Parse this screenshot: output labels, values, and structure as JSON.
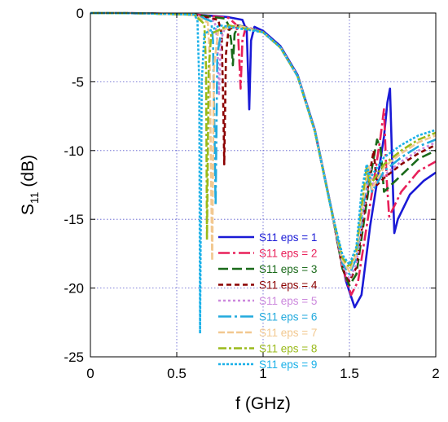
{
  "chart_data": {
    "type": "line",
    "xlabel": "f (GHz)",
    "ylabel_main": "S",
    "ylabel_sub": "11",
    "ylabel_unit": "(dB)",
    "xlim": [
      0,
      2
    ],
    "ylim": [
      -25,
      0
    ],
    "x_ticks": [
      0,
      0.5,
      1,
      1.5,
      2
    ],
    "x_tick_labels": [
      "0",
      "0.5",
      "1",
      "1.5",
      "2"
    ],
    "y_ticks": [
      0,
      -5,
      -10,
      -15,
      -20,
      -25
    ],
    "y_tick_labels": [
      "0",
      "-5",
      "-10",
      "-15",
      "-20",
      "-25"
    ],
    "grid": true,
    "legend_position": "bottom-right",
    "series": [
      {
        "name": "S11 eps = 1",
        "color": "#1a1ad6",
        "dash": "solid",
        "points": [
          [
            0,
            0
          ],
          [
            0.3,
            -0.02
          ],
          [
            0.6,
            -0.1
          ],
          [
            0.8,
            -0.3
          ],
          [
            0.88,
            -0.5
          ],
          [
            0.905,
            -1.3
          ],
          [
            0.92,
            -7.0
          ],
          [
            0.93,
            -2.0
          ],
          [
            0.95,
            -1.0
          ],
          [
            1.0,
            -1.3
          ],
          [
            1.1,
            -2.4
          ],
          [
            1.2,
            -4.5
          ],
          [
            1.3,
            -8.5
          ],
          [
            1.4,
            -14.5
          ],
          [
            1.48,
            -19.5
          ],
          [
            1.53,
            -21.4
          ],
          [
            1.57,
            -20.5
          ],
          [
            1.62,
            -15.5
          ],
          [
            1.67,
            -11.5
          ],
          [
            1.7,
            -9.0
          ],
          [
            1.72,
            -6.5
          ],
          [
            1.735,
            -5.5
          ],
          [
            1.75,
            -12.0
          ],
          [
            1.76,
            -16.0
          ],
          [
            1.78,
            -15.0
          ],
          [
            1.85,
            -13.2
          ],
          [
            1.93,
            -12.2
          ],
          [
            2.0,
            -11.6
          ]
        ]
      },
      {
        "name": "S11 eps = 2",
        "color": "#e8205a",
        "dash": "14,4,3,4",
        "points": [
          [
            0,
            0
          ],
          [
            0.3,
            -0.02
          ],
          [
            0.6,
            -0.1
          ],
          [
            0.8,
            -0.35
          ],
          [
            0.84,
            -0.8
          ],
          [
            0.855,
            -1.5
          ],
          [
            0.87,
            -5.5
          ],
          [
            0.88,
            -2.0
          ],
          [
            0.9,
            -1.0
          ],
          [
            1.0,
            -1.4
          ],
          [
            1.1,
            -2.5
          ],
          [
            1.2,
            -4.6
          ],
          [
            1.3,
            -8.6
          ],
          [
            1.4,
            -14.6
          ],
          [
            1.46,
            -18.5
          ],
          [
            1.51,
            -20.5
          ],
          [
            1.55,
            -19.5
          ],
          [
            1.6,
            -15.5
          ],
          [
            1.65,
            -11.5
          ],
          [
            1.68,
            -9.0
          ],
          [
            1.7,
            -7.0
          ],
          [
            1.715,
            -12.0
          ],
          [
            1.73,
            -14.8
          ],
          [
            1.8,
            -13.0
          ],
          [
            1.9,
            -11.5
          ],
          [
            2.0,
            -10.8
          ]
        ]
      },
      {
        "name": "S11 eps = 3",
        "color": "#1a6a1a",
        "dash": "12,5",
        "points": [
          [
            0,
            0
          ],
          [
            0.3,
            -0.02
          ],
          [
            0.6,
            -0.1
          ],
          [
            0.78,
            -0.4
          ],
          [
            0.8,
            -0.9
          ],
          [
            0.815,
            -2.0
          ],
          [
            0.825,
            -3.8
          ],
          [
            0.835,
            -1.5
          ],
          [
            0.86,
            -0.9
          ],
          [
            1.0,
            -1.4
          ],
          [
            1.1,
            -2.5
          ],
          [
            1.2,
            -4.6
          ],
          [
            1.3,
            -8.6
          ],
          [
            1.4,
            -14.6
          ],
          [
            1.46,
            -18.6
          ],
          [
            1.5,
            -19.8
          ],
          [
            1.54,
            -19.0
          ],
          [
            1.58,
            -15.5
          ],
          [
            1.62,
            -12.0
          ],
          [
            1.66,
            -9.2
          ],
          [
            1.68,
            -9.8
          ],
          [
            1.7,
            -13.0
          ],
          [
            1.8,
            -11.8
          ],
          [
            1.9,
            -10.6
          ],
          [
            2.0,
            -10.0
          ]
        ]
      },
      {
        "name": "S11 eps = 4",
        "color": "#8b0000",
        "dash": "6,4",
        "points": [
          [
            0,
            0
          ],
          [
            0.3,
            -0.02
          ],
          [
            0.6,
            -0.12
          ],
          [
            0.74,
            -0.5
          ],
          [
            0.76,
            -1.5
          ],
          [
            0.77,
            -7.0
          ],
          [
            0.775,
            -11.0
          ],
          [
            0.785,
            -3.0
          ],
          [
            0.8,
            -1.2
          ],
          [
            0.85,
            -0.9
          ],
          [
            1.0,
            -1.4
          ],
          [
            1.1,
            -2.5
          ],
          [
            1.2,
            -4.6
          ],
          [
            1.3,
            -8.6
          ],
          [
            1.4,
            -14.6
          ],
          [
            1.46,
            -18.6
          ],
          [
            1.5,
            -19.5
          ],
          [
            1.54,
            -18.5
          ],
          [
            1.58,
            -15.0
          ],
          [
            1.62,
            -11.5
          ],
          [
            1.64,
            -10.0
          ],
          [
            1.66,
            -12.5
          ],
          [
            1.7,
            -12.0
          ],
          [
            1.8,
            -11.0
          ],
          [
            1.9,
            -10.2
          ],
          [
            2.0,
            -9.6
          ]
        ]
      },
      {
        "name": "S11 eps = 5",
        "color": "#cc88dd",
        "dash": "3,3",
        "points": [
          [
            0,
            0
          ],
          [
            0.3,
            -0.02
          ],
          [
            0.6,
            -0.12
          ],
          [
            0.72,
            -0.6
          ],
          [
            0.735,
            -2.0
          ],
          [
            0.745,
            -6.0
          ],
          [
            0.755,
            -2.0
          ],
          [
            0.78,
            -1.0
          ],
          [
            0.85,
            -0.9
          ],
          [
            1.0,
            -1.4
          ],
          [
            1.1,
            -2.5
          ],
          [
            1.2,
            -4.6
          ],
          [
            1.3,
            -8.6
          ],
          [
            1.4,
            -14.6
          ],
          [
            1.46,
            -18.4
          ],
          [
            1.5,
            -19.3
          ],
          [
            1.54,
            -18.3
          ],
          [
            1.58,
            -14.5
          ],
          [
            1.62,
            -11.2
          ],
          [
            1.64,
            -12.5
          ],
          [
            1.7,
            -11.8
          ],
          [
            1.8,
            -10.8
          ],
          [
            1.9,
            -10.0
          ],
          [
            2.0,
            -9.4
          ]
        ]
      },
      {
        "name": "S11 eps = 6",
        "color": "#22aadd",
        "dash": "16,4,3,4",
        "points": [
          [
            0,
            0
          ],
          [
            0.3,
            -0.02
          ],
          [
            0.6,
            -0.12
          ],
          [
            0.7,
            -0.6
          ],
          [
            0.71,
            -2.0
          ],
          [
            0.72,
            -10.0
          ],
          [
            0.725,
            -14.0
          ],
          [
            0.735,
            -3.0
          ],
          [
            0.76,
            -1.2
          ],
          [
            0.85,
            -0.9
          ],
          [
            1.0,
            -1.4
          ],
          [
            1.1,
            -2.5
          ],
          [
            1.2,
            -4.6
          ],
          [
            1.3,
            -8.6
          ],
          [
            1.4,
            -14.6
          ],
          [
            1.46,
            -18.2
          ],
          [
            1.5,
            -19.0
          ],
          [
            1.54,
            -17.8
          ],
          [
            1.58,
            -14.0
          ],
          [
            1.61,
            -11.5
          ],
          [
            1.63,
            -13.0
          ],
          [
            1.7,
            -11.5
          ],
          [
            1.8,
            -10.5
          ],
          [
            1.9,
            -9.7
          ],
          [
            2.0,
            -9.2
          ]
        ]
      },
      {
        "name": "S11 eps = 7",
        "color": "#f2c890",
        "dash": "8,3",
        "points": [
          [
            0,
            0
          ],
          [
            0.3,
            -0.02
          ],
          [
            0.6,
            -0.12
          ],
          [
            0.68,
            -0.7
          ],
          [
            0.69,
            -3.0
          ],
          [
            0.7,
            -13.0
          ],
          [
            0.705,
            -18.0
          ],
          [
            0.715,
            -4.0
          ],
          [
            0.74,
            -1.3
          ],
          [
            0.85,
            -0.9
          ],
          [
            1.0,
            -1.4
          ],
          [
            1.1,
            -2.5
          ],
          [
            1.2,
            -4.6
          ],
          [
            1.3,
            -8.6
          ],
          [
            1.4,
            -14.6
          ],
          [
            1.46,
            -18.0
          ],
          [
            1.5,
            -18.8
          ],
          [
            1.54,
            -17.5
          ],
          [
            1.58,
            -13.5
          ],
          [
            1.61,
            -11.0
          ],
          [
            1.63,
            -12.8
          ],
          [
            1.7,
            -11.2
          ],
          [
            1.8,
            -10.2
          ],
          [
            1.9,
            -9.4
          ],
          [
            2.0,
            -8.9
          ]
        ]
      },
      {
        "name": "S11 eps = 8",
        "color": "#9aba1a",
        "dash": "10,3,3,3",
        "points": [
          [
            0,
            0
          ],
          [
            0.3,
            -0.02
          ],
          [
            0.6,
            -0.12
          ],
          [
            0.66,
            -0.8
          ],
          [
            0.67,
            -4.0
          ],
          [
            0.675,
            -16.5
          ],
          [
            0.685,
            -4.0
          ],
          [
            0.7,
            -1.5
          ],
          [
            0.8,
            -0.9
          ],
          [
            1.0,
            -1.4
          ],
          [
            1.1,
            -2.5
          ],
          [
            1.2,
            -4.6
          ],
          [
            1.3,
            -8.6
          ],
          [
            1.4,
            -14.6
          ],
          [
            1.46,
            -17.8
          ],
          [
            1.5,
            -18.5
          ],
          [
            1.54,
            -17.2
          ],
          [
            1.58,
            -13.0
          ],
          [
            1.6,
            -11.2
          ],
          [
            1.62,
            -12.5
          ],
          [
            1.7,
            -11.0
          ],
          [
            1.8,
            -10.0
          ],
          [
            1.9,
            -9.2
          ],
          [
            2.0,
            -8.7
          ]
        ]
      },
      {
        "name": "S11 eps = 9",
        "color": "#1ab0e8",
        "dash": "3,2",
        "points": [
          [
            0,
            0
          ],
          [
            0.3,
            -0.02
          ],
          [
            0.6,
            -0.12
          ],
          [
            0.62,
            -0.5
          ],
          [
            0.63,
            -5.0
          ],
          [
            0.635,
            -23.3
          ],
          [
            0.645,
            -5.0
          ],
          [
            0.66,
            -1.5
          ],
          [
            0.75,
            -0.9
          ],
          [
            1.0,
            -1.4
          ],
          [
            1.1,
            -2.5
          ],
          [
            1.2,
            -4.6
          ],
          [
            1.3,
            -8.6
          ],
          [
            1.4,
            -14.6
          ],
          [
            1.46,
            -17.6
          ],
          [
            1.5,
            -18.3
          ],
          [
            1.54,
            -17.0
          ],
          [
            1.57,
            -13.0
          ],
          [
            1.6,
            -11.0
          ],
          [
            1.62,
            -12.0
          ],
          [
            1.7,
            -10.5
          ],
          [
            1.8,
            -9.6
          ],
          [
            1.9,
            -8.9
          ],
          [
            2.0,
            -8.5
          ]
        ]
      }
    ]
  }
}
